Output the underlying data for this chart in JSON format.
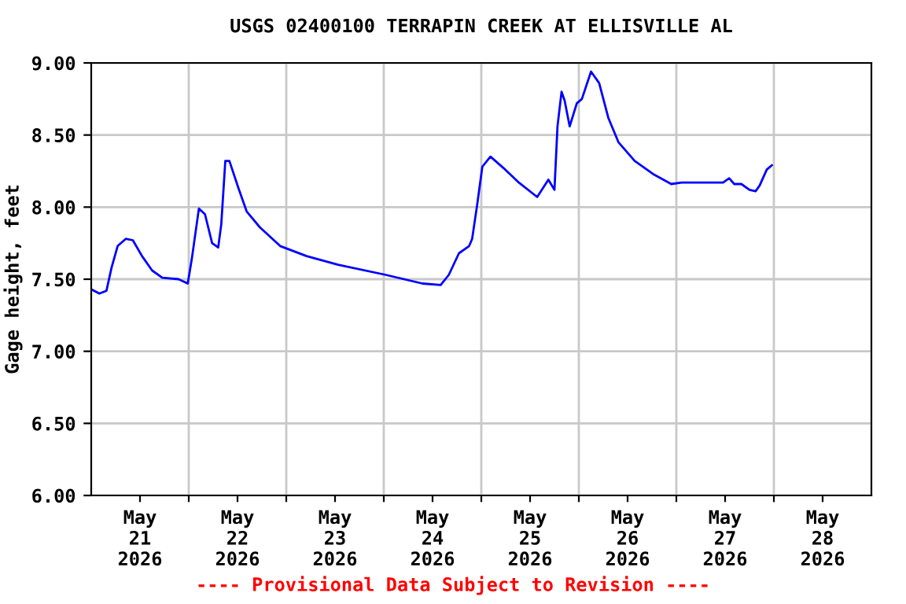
{
  "chart_data": {
    "type": "line",
    "title": "USGS 02400100 TERRAPIN CREEK AT ELLISVILLE AL",
    "ylabel": "Gage height, feet",
    "annotations": [
      "---- Provisional Data Subject to Revision ----"
    ],
    "x": [
      "2026-05-21T00:00",
      "2026-05-21T02:00",
      "2026-05-21T03:45",
      "2026-05-21T05:00",
      "2026-05-21T06:30",
      "2026-05-21T08:30",
      "2026-05-21T10:15",
      "2026-05-21T12:30",
      "2026-05-21T15:00",
      "2026-05-21T17:30",
      "2026-05-21T21:30",
      "2026-05-21T23:45",
      "2026-05-22T00:45",
      "2026-05-22T02:30",
      "2026-05-22T04:00",
      "2026-05-22T05:45",
      "2026-05-22T07:15",
      "2026-05-22T08:00",
      "2026-05-22T09:00",
      "2026-05-22T10:00",
      "2026-05-22T12:15",
      "2026-05-22T14:15",
      "2026-05-22T17:30",
      "2026-05-22T22:30",
      "2026-05-23T05:00",
      "2026-05-23T12:45",
      "2026-05-24T00:30",
      "2026-05-24T09:30",
      "2026-05-24T14:00",
      "2026-05-24T16:00",
      "2026-05-24T18:30",
      "2026-05-24T21:00",
      "2026-05-24T21:45",
      "2026-05-24T23:00",
      "2026-05-25T00:15",
      "2026-05-25T02:15",
      "2026-05-25T05:30",
      "2026-05-25T09:15",
      "2026-05-25T13:45",
      "2026-05-25T16:30",
      "2026-05-25T18:00",
      "2026-05-25T18:45",
      "2026-05-25T19:45",
      "2026-05-25T20:30",
      "2026-05-25T21:45",
      "2026-05-25T23:30",
      "2026-05-26T00:45",
      "2026-05-26T03:00",
      "2026-05-26T05:00",
      "2026-05-26T07:15",
      "2026-05-26T09:45",
      "2026-05-26T13:45",
      "2026-05-26T18:15",
      "2026-05-26T22:45",
      "2026-05-27T01:15",
      "2026-05-27T11:30",
      "2026-05-27T13:00",
      "2026-05-27T14:15",
      "2026-05-27T16:00",
      "2026-05-27T18:00",
      "2026-05-27T19:30",
      "2026-05-27T20:30",
      "2026-05-27T22:15",
      "2026-05-27T23:30"
    ],
    "series": [
      {
        "color": "#0000ff",
        "values": [
          7.43,
          7.4,
          7.42,
          7.58,
          7.73,
          7.78,
          7.77,
          7.66,
          7.56,
          7.51,
          7.5,
          7.47,
          7.64,
          7.99,
          7.95,
          7.75,
          7.72,
          7.88,
          8.32,
          8.32,
          8.13,
          7.97,
          7.86,
          7.73,
          7.66,
          7.6,
          7.53,
          7.47,
          7.46,
          7.53,
          7.68,
          7.73,
          7.78,
          8.02,
          8.28,
          8.35,
          8.27,
          8.17,
          8.07,
          8.19,
          8.12,
          8.56,
          8.8,
          8.74,
          8.56,
          8.72,
          8.75,
          8.94,
          8.86,
          8.62,
          8.45,
          8.32,
          8.23,
          8.16,
          8.17,
          8.17,
          8.2,
          8.16,
          8.16,
          8.12,
          8.11,
          8.15,
          8.26,
          8.29
        ]
      }
    ],
    "xlim": [
      "2026-05-21T00:00",
      "2026-05-29T00:00"
    ],
    "xticks": [
      {
        "value": "2026-05-21T12:00",
        "label": "May\n21\n2026"
      },
      {
        "value": "2026-05-22T00:00",
        "label": null
      },
      {
        "value": "2026-05-22T12:00",
        "label": "May\n22\n2026"
      },
      {
        "value": "2026-05-23T00:00",
        "label": null
      },
      {
        "value": "2026-05-23T12:00",
        "label": "May\n23\n2026"
      },
      {
        "value": "2026-05-24T00:00",
        "label": null
      },
      {
        "value": "2026-05-24T12:00",
        "label": "May\n24\n2026"
      },
      {
        "value": "2026-05-25T00:00",
        "label": null
      },
      {
        "value": "2026-05-25T12:00",
        "label": "May\n25\n2026"
      },
      {
        "value": "2026-05-26T00:00",
        "label": null
      },
      {
        "value": "2026-05-26T12:00",
        "label": "May\n26\n2026"
      },
      {
        "value": "2026-05-27T00:00",
        "label": null
      },
      {
        "value": "2026-05-27T12:00",
        "label": "May\n27\n2026"
      },
      {
        "value": "2026-05-28T00:00",
        "label": null
      },
      {
        "value": "2026-05-28T12:00",
        "label": "May\n28\n2026"
      }
    ],
    "ylim": [
      6.0,
      9.0
    ],
    "yticks": [
      {
        "value": 6.0,
        "label": "6.00"
      },
      {
        "value": 6.5,
        "label": "6.50"
      },
      {
        "value": 7.0,
        "label": "7.00"
      },
      {
        "value": 7.5,
        "label": "7.50"
      },
      {
        "value": 8.0,
        "label": "8.00"
      },
      {
        "value": 8.5,
        "label": "8.50"
      },
      {
        "value": 9.0,
        "label": "9.00"
      }
    ],
    "grid": true
  }
}
